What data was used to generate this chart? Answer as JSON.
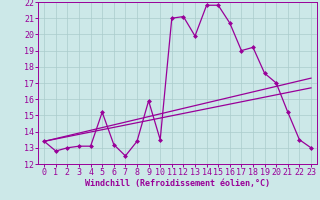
{
  "xlabel": "Windchill (Refroidissement éolien,°C)",
  "xlim": [
    -0.5,
    23.5
  ],
  "ylim": [
    12,
    22
  ],
  "xticks": [
    0,
    1,
    2,
    3,
    4,
    5,
    6,
    7,
    8,
    9,
    10,
    11,
    12,
    13,
    14,
    15,
    16,
    17,
    18,
    19,
    20,
    21,
    22,
    23
  ],
  "yticks": [
    12,
    13,
    14,
    15,
    16,
    17,
    18,
    19,
    20,
    21,
    22
  ],
  "background_color": "#cce8e8",
  "line_color": "#990099",
  "grid_color": "#aacccc",
  "series1_x": [
    0,
    1,
    2,
    3,
    4,
    5,
    6,
    7,
    8,
    9,
    10,
    11,
    12,
    13,
    14,
    15,
    16,
    17,
    18,
    19,
    20,
    21,
    22,
    23
  ],
  "series1_y": [
    13.4,
    12.8,
    13.0,
    13.1,
    13.1,
    15.2,
    13.2,
    12.5,
    13.4,
    15.9,
    13.5,
    21.0,
    21.1,
    19.9,
    21.8,
    21.8,
    20.7,
    19.0,
    19.2,
    17.6,
    17.0,
    15.2,
    13.5,
    13.0
  ],
  "series2_x": [
    0,
    23
  ],
  "series2_y": [
    13.4,
    17.3
  ],
  "series3_x": [
    0,
    23
  ],
  "series3_y": [
    13.4,
    16.7
  ],
  "tick_fontsize": 6,
  "xlabel_fontsize": 6,
  "linewidth": 0.9,
  "markersize": 2.5
}
